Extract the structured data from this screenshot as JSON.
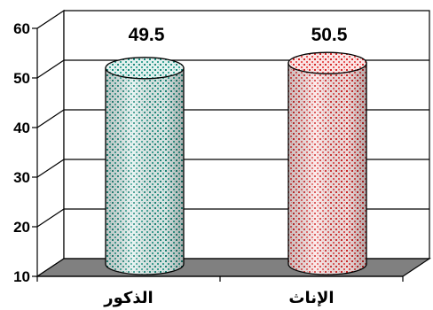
{
  "chart_data": {
    "type": "bar",
    "categories": [
      "الذكور",
      "الإناث"
    ],
    "values": [
      49.5,
      50.5
    ],
    "data_labels": [
      "49.5",
      "50.5"
    ],
    "ylim": [
      10,
      60
    ],
    "yticks": [
      "10",
      "20",
      "30",
      "40",
      "50",
      "60"
    ],
    "grid": true,
    "title": "",
    "xlabel": "",
    "ylabel": "",
    "legend": "none",
    "series_colors": [
      "#2e9a8c",
      "#e03a3a"
    ]
  }
}
